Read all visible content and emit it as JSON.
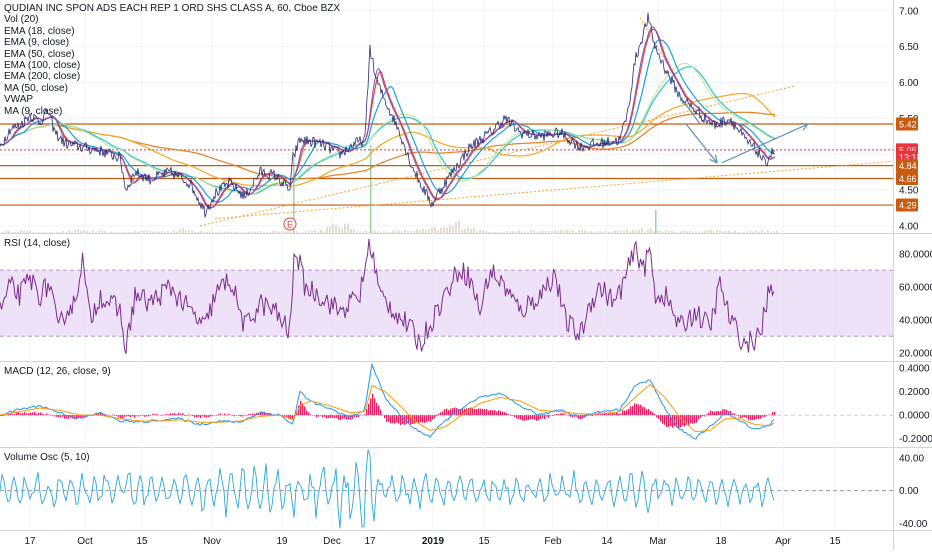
{
  "chart_data": [
    {
      "type": "line",
      "title": "QUDIAN INC SPON ADS EACH REP 1 ORD SHS CLASS A, 60, Cboe BZX",
      "indicators": [
        "Vol (20)",
        "EMA (18, close)",
        "EMA (9, close)",
        "EMA (50, close)",
        "EMA (100, close)",
        "EMA (200, close)",
        "MA (50, close)",
        "VWAP",
        "MA (9, close)"
      ],
      "y_ticks": [
        "7.00",
        "6.50",
        "6.00",
        "5.50",
        "5.00",
        "4.50",
        "4.00"
      ],
      "ylim": [
        3.9,
        7.15
      ],
      "price_tags": [
        {
          "label": "5.42",
          "value": 5.42,
          "color": "#c75b12"
        },
        {
          "label": "5.06",
          "value": 5.06,
          "color": "#e8343a"
        },
        {
          "label": "13:18",
          "value": 4.96,
          "color": "#e8343a"
        },
        {
          "label": "4.84",
          "value": 4.84,
          "color": "#c75b12"
        },
        {
          "label": "4.66",
          "value": 4.66,
          "color": "#c75b12"
        },
        {
          "label": "4.29",
          "value": 4.29,
          "color": "#c75b12"
        }
      ],
      "horizontal_levels": [
        5.42,
        4.84,
        4.66,
        4.29
      ],
      "current_price": 5.06,
      "earnings_marker": "E",
      "price_path": [
        [
          0,
          5.1
        ],
        [
          10,
          5.35
        ],
        [
          20,
          5.4
        ],
        [
          30,
          5.55
        ],
        [
          40,
          5.45
        ],
        [
          48,
          5.6
        ],
        [
          55,
          5.3
        ],
        [
          65,
          5.15
        ],
        [
          80,
          5.1
        ],
        [
          100,
          5.05
        ],
        [
          120,
          4.95
        ],
        [
          126,
          4.5
        ],
        [
          135,
          4.75
        ],
        [
          150,
          4.65
        ],
        [
          170,
          4.75
        ],
        [
          190,
          4.6
        ],
        [
          205,
          4.2
        ],
        [
          215,
          4.45
        ],
        [
          230,
          4.6
        ],
        [
          245,
          4.4
        ],
        [
          260,
          4.75
        ],
        [
          275,
          4.7
        ],
        [
          290,
          4.5
        ],
        [
          293,
          4.95
        ],
        [
          300,
          5.2
        ],
        [
          320,
          5.15
        ],
        [
          340,
          5.0
        ],
        [
          355,
          5.15
        ],
        [
          365,
          5.2
        ],
        [
          370,
          6.5
        ],
        [
          375,
          6.1
        ],
        [
          380,
          5.9
        ],
        [
          390,
          5.6
        ],
        [
          400,
          5.3
        ],
        [
          410,
          4.9
        ],
        [
          420,
          4.6
        ],
        [
          432,
          4.3
        ],
        [
          440,
          4.5
        ],
        [
          455,
          4.8
        ],
        [
          470,
          5.1
        ],
        [
          490,
          5.3
        ],
        [
          505,
          5.5
        ],
        [
          520,
          5.3
        ],
        [
          540,
          5.25
        ],
        [
          560,
          5.3
        ],
        [
          580,
          5.1
        ],
        [
          600,
          5.15
        ],
        [
          620,
          5.2
        ],
        [
          628,
          5.6
        ],
        [
          635,
          6.3
        ],
        [
          648,
          6.9
        ],
        [
          655,
          6.5
        ],
        [
          665,
          6.2
        ],
        [
          680,
          5.8
        ],
        [
          700,
          5.55
        ],
        [
          715,
          5.4
        ],
        [
          730,
          5.5
        ],
        [
          745,
          5.2
        ],
        [
          760,
          5.0
        ],
        [
          765,
          4.85
        ],
        [
          770,
          5.0
        ],
        [
          775,
          5.06
        ]
      ],
      "volume": [
        2,
        3,
        1,
        2,
        4,
        2,
        1,
        3,
        2,
        5,
        3,
        2,
        1,
        2,
        3,
        2,
        4,
        12,
        3,
        2,
        3,
        4,
        6,
        14,
        3,
        2,
        3,
        2,
        4,
        3,
        2,
        3,
        6,
        3,
        2,
        3,
        4,
        2,
        3,
        2
      ]
    },
    {
      "type": "line",
      "title": "RSI (14, close)",
      "y_ticks": [
        "80.0000",
        "60.0000",
        "40.0000",
        "20.0000"
      ],
      "ylim": [
        15,
        92
      ],
      "band": [
        30,
        70
      ],
      "values": [
        [
          0,
          45
        ],
        [
          10,
          60
        ],
        [
          20,
          55
        ],
        [
          30,
          65
        ],
        [
          40,
          55
        ],
        [
          50,
          62
        ],
        [
          58,
          32
        ],
        [
          65,
          45
        ],
        [
          75,
          50
        ],
        [
          82,
          78
        ],
        [
          90,
          40
        ],
        [
          100,
          55
        ],
        [
          110,
          50
        ],
        [
          120,
          45
        ],
        [
          126,
          22
        ],
        [
          135,
          55
        ],
        [
          150,
          50
        ],
        [
          170,
          60
        ],
        [
          190,
          45
        ],
        [
          205,
          35
        ],
        [
          215,
          55
        ],
        [
          230,
          65
        ],
        [
          245,
          35
        ],
        [
          260,
          50
        ],
        [
          275,
          45
        ],
        [
          290,
          32
        ],
        [
          295,
          85
        ],
        [
          305,
          60
        ],
        [
          320,
          55
        ],
        [
          340,
          45
        ],
        [
          360,
          55
        ],
        [
          370,
          88
        ],
        [
          380,
          55
        ],
        [
          395,
          45
        ],
        [
          410,
          35
        ],
        [
          420,
          25
        ],
        [
          432,
          40
        ],
        [
          445,
          55
        ],
        [
          460,
          72
        ],
        [
          470,
          65
        ],
        [
          480,
          45
        ],
        [
          490,
          70
        ],
        [
          505,
          60
        ],
        [
          520,
          45
        ],
        [
          540,
          55
        ],
        [
          555,
          68
        ],
        [
          565,
          40
        ],
        [
          580,
          30
        ],
        [
          590,
          50
        ],
        [
          600,
          60
        ],
        [
          615,
          50
        ],
        [
          625,
          65
        ],
        [
          635,
          82
        ],
        [
          645,
          72
        ],
        [
          650,
          83
        ],
        [
          655,
          55
        ],
        [
          665,
          55
        ],
        [
          680,
          35
        ],
        [
          695,
          45
        ],
        [
          710,
          35
        ],
        [
          720,
          62
        ],
        [
          730,
          40
        ],
        [
          745,
          25
        ],
        [
          760,
          30
        ],
        [
          768,
          55
        ],
        [
          775,
          58
        ]
      ]
    },
    {
      "type": "bar",
      "title": "MACD (12, 26, close, 9)",
      "y_ticks": [
        "0.4000",
        "0.2000",
        "0.0000",
        "-0.2000"
      ],
      "ylim": [
        -0.27,
        0.45
      ],
      "macd": [
        [
          0,
          0.0
        ],
        [
          20,
          0.05
        ],
        [
          40,
          0.08
        ],
        [
          60,
          0.02
        ],
        [
          80,
          -0.03
        ],
        [
          100,
          0.02
        ],
        [
          120,
          -0.05
        ],
        [
          140,
          -0.06
        ],
        [
          160,
          -0.04
        ],
        [
          180,
          -0.03
        ],
        [
          200,
          -0.08
        ],
        [
          220,
          -0.05
        ],
        [
          240,
          -0.06
        ],
        [
          260,
          0.02
        ],
        [
          280,
          0.0
        ],
        [
          293,
          -0.08
        ],
        [
          300,
          0.2
        ],
        [
          310,
          0.12
        ],
        [
          330,
          0.05
        ],
        [
          350,
          -0.02
        ],
        [
          365,
          0.05
        ],
        [
          372,
          0.43
        ],
        [
          385,
          0.15
        ],
        [
          400,
          0.0
        ],
        [
          415,
          -0.12
        ],
        [
          430,
          -0.18
        ],
        [
          445,
          -0.05
        ],
        [
          460,
          0.05
        ],
        [
          480,
          0.15
        ],
        [
          500,
          0.18
        ],
        [
          520,
          0.08
        ],
        [
          540,
          0.0
        ],
        [
          560,
          0.05
        ],
        [
          580,
          -0.02
        ],
        [
          600,
          0.03
        ],
        [
          620,
          0.05
        ],
        [
          635,
          0.25
        ],
        [
          650,
          0.3
        ],
        [
          665,
          0.05
        ],
        [
          680,
          -0.12
        ],
        [
          695,
          -0.2
        ],
        [
          710,
          -0.1
        ],
        [
          725,
          0.02
        ],
        [
          740,
          -0.05
        ],
        [
          755,
          -0.12
        ],
        [
          770,
          -0.08
        ],
        [
          775,
          -0.03
        ]
      ],
      "signal": [
        [
          0,
          0.0
        ],
        [
          20,
          0.03
        ],
        [
          40,
          0.06
        ],
        [
          60,
          0.04
        ],
        [
          80,
          0.0
        ],
        [
          100,
          0.0
        ],
        [
          120,
          -0.03
        ],
        [
          140,
          -0.05
        ],
        [
          160,
          -0.05
        ],
        [
          180,
          -0.04
        ],
        [
          200,
          -0.06
        ],
        [
          220,
          -0.06
        ],
        [
          240,
          -0.05
        ],
        [
          260,
          -0.01
        ],
        [
          280,
          0.0
        ],
        [
          293,
          -0.04
        ],
        [
          300,
          0.08
        ],
        [
          310,
          0.12
        ],
        [
          330,
          0.08
        ],
        [
          350,
          0.02
        ],
        [
          365,
          0.03
        ],
        [
          372,
          0.25
        ],
        [
          385,
          0.2
        ],
        [
          400,
          0.08
        ],
        [
          415,
          -0.05
        ],
        [
          430,
          -0.13
        ],
        [
          445,
          -0.1
        ],
        [
          460,
          -0.01
        ],
        [
          480,
          0.1
        ],
        [
          500,
          0.15
        ],
        [
          520,
          0.12
        ],
        [
          540,
          0.04
        ],
        [
          560,
          0.03
        ],
        [
          580,
          0.01
        ],
        [
          600,
          0.01
        ],
        [
          620,
          0.03
        ],
        [
          635,
          0.15
        ],
        [
          650,
          0.26
        ],
        [
          665,
          0.15
        ],
        [
          680,
          -0.02
        ],
        [
          695,
          -0.14
        ],
        [
          710,
          -0.13
        ],
        [
          725,
          -0.03
        ],
        [
          740,
          -0.03
        ],
        [
          755,
          -0.08
        ],
        [
          770,
          -0.09
        ],
        [
          775,
          -0.06
        ]
      ]
    },
    {
      "type": "line",
      "title": "Volume Osc (5, 10)",
      "y_ticks": [
        "40.00",
        "0.00",
        "-40.00"
      ],
      "ylim": [
        -48,
        52
      ],
      "amplitude_profile": [
        [
          0,
          18
        ],
        [
          100,
          22
        ],
        [
          200,
          20
        ],
        [
          290,
          38
        ],
        [
          300,
          22
        ],
        [
          370,
          44
        ],
        [
          380,
          20
        ],
        [
          500,
          18
        ],
        [
          600,
          20
        ],
        [
          650,
          24
        ],
        [
          700,
          18
        ],
        [
          775,
          15
        ]
      ]
    }
  ],
  "x_axis_labels": [
    "17",
    "Oct",
    "15",
    "Nov",
    "19",
    "Dec",
    "17",
    "2019",
    "15",
    "Feb",
    "14",
    "Mar",
    "18",
    "Apr",
    "15"
  ],
  "x_label_positions": [
    30,
    85,
    142,
    212,
    282,
    332,
    370,
    433,
    484,
    553,
    607,
    658,
    721,
    783,
    835
  ],
  "colors": {
    "price": "#2b2b6f",
    "ema18": "#1a9fe0",
    "ema9": "#e0453a",
    "ema50": "#26c6da",
    "ema100": "#f5a623",
    "ema200": "#e67e22",
    "ma50": "#7e57c2",
    "vwap": "#9c27b0",
    "ma9": "#4caf50",
    "level": "#c75b12",
    "current": "#e8343a",
    "rsi": "#7b2d8e",
    "rsi_band": "#e6d6f3",
    "macd": "#2196f3",
    "signal": "#ff9800",
    "hist": "#e91e63",
    "vol_osc": "#2aa7d8",
    "arrow": "#5b8fb9"
  }
}
